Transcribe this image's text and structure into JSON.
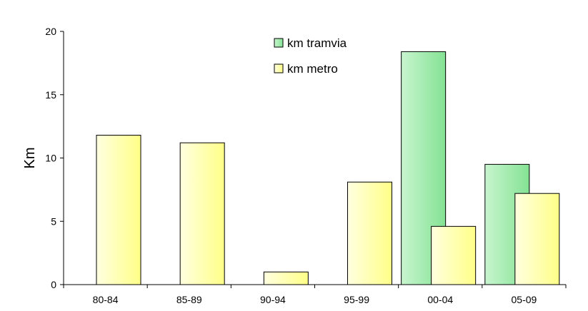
{
  "chart_data": {
    "type": "bar",
    "categories": [
      "80-84",
      "85-89",
      "90-94",
      "95-99",
      "00-04",
      "05-09"
    ],
    "series": [
      {
        "name": "km tramvia",
        "values": [
          0,
          0,
          0,
          0,
          18.4,
          9.5
        ],
        "color": "#8EE39B"
      },
      {
        "name": "km metro",
        "values": [
          11.8,
          11.2,
          1.0,
          8.1,
          4.6,
          7.2
        ],
        "color": "#FFFF99"
      }
    ],
    "title": "",
    "xlabel": "",
    "ylabel": "Km",
    "ylim": [
      0,
      20
    ],
    "yticks": [
      "0",
      "5",
      "10",
      "15",
      "20"
    ],
    "grid": false,
    "legend_position": "top-center"
  }
}
